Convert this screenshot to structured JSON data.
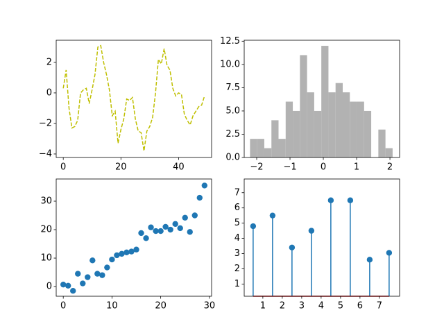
{
  "chart_data": [
    {
      "type": "line",
      "color": "#bfbf00",
      "linestyle": "dashed",
      "x": [
        0,
        1,
        2,
        3,
        4,
        5,
        6,
        7,
        8,
        9,
        10,
        11,
        12,
        13,
        14,
        15,
        16,
        17,
        18,
        19,
        20,
        21,
        22,
        23,
        24,
        25,
        26,
        27,
        28,
        29,
        30,
        31,
        32,
        33,
        34,
        35,
        36,
        37,
        38,
        39,
        40,
        41,
        42,
        43,
        44,
        45,
        46,
        47,
        48,
        49
      ],
      "values": [
        0.3,
        1.5,
        -1.0,
        -2.3,
        -2.2,
        -1.8,
        0.0,
        0.2,
        0.3,
        -0.7,
        0.2,
        1.2,
        3.0,
        3.1,
        2.0,
        1.2,
        0.2,
        -1.5,
        -1.2,
        -3.3,
        -2.4,
        -1.7,
        -0.4,
        -0.5,
        -0.3,
        -1.7,
        -2.5,
        -2.6,
        -3.8,
        -2.5,
        -2.2,
        -1.6,
        0.0,
        2.2,
        1.9,
        2.9,
        1.8,
        1.5,
        0.3,
        -0.2,
        0.0,
        -0.1,
        -1.4,
        -1.8,
        -2.1,
        -1.5,
        -1.2,
        -0.9,
        -0.8,
        -0.2
      ],
      "xlim": [
        -2.45,
        51.45
      ],
      "xticks": [
        0,
        20,
        40
      ],
      "ylim": [
        -4.23,
        3.45
      ],
      "yticks": [
        {
          "value": -4,
          "label": "−4"
        },
        {
          "value": -2,
          "label": "−2"
        },
        0,
        2
      ]
    },
    {
      "type": "histogram",
      "color": "#b2b2b2",
      "bins": [
        -2.2,
        -1.986,
        -1.772,
        -1.558,
        -1.344,
        -1.13,
        -0.916,
        -0.702,
        -0.488,
        -0.274,
        -0.06,
        0.154,
        0.368,
        0.582,
        0.796,
        1.01,
        1.224,
        1.438,
        1.652,
        1.866,
        2.08
      ],
      "values": [
        2,
        2,
        1,
        4,
        2,
        6,
        5,
        11,
        7,
        5,
        12,
        7,
        8,
        7,
        6,
        6,
        5,
        0,
        3,
        1
      ],
      "xlim": [
        -2.375,
        2.29
      ],
      "xticks": [
        {
          "value": -2,
          "label": "−2"
        },
        {
          "value": -1,
          "label": "−1"
        },
        0,
        1,
        2
      ],
      "ylim": [
        0,
        12.6
      ],
      "yticks": [
        {
          "value": 0,
          "label": "0.0"
        },
        2.5,
        {
          "value": 5,
          "label": "5.0"
        },
        7.5,
        {
          "value": 10,
          "label": "10.0"
        },
        12.5
      ]
    },
    {
      "type": "scatter",
      "color": "#1f77b4",
      "x": [
        0,
        1,
        2,
        3,
        4,
        5,
        6,
        7,
        8,
        9,
        10,
        11,
        12,
        13,
        14,
        15,
        16,
        17,
        18,
        19,
        20,
        21,
        22,
        23,
        24,
        25,
        26,
        27,
        28,
        29
      ],
      "values": [
        0.7,
        0.3,
        -1.5,
        4.5,
        1.1,
        3.3,
        9.2,
        4.5,
        4.0,
        6.7,
        9.5,
        11,
        11.5,
        12,
        12.3,
        13,
        18.8,
        17,
        20.8,
        19.5,
        19.5,
        21,
        20,
        22,
        20.5,
        24.2,
        19.2,
        25,
        31.2,
        35.5
      ],
      "xlim": [
        -1.45,
        30.45
      ],
      "xticks": [
        0,
        10,
        20,
        30
      ],
      "ylim": [
        -3.4,
        37.8
      ],
      "yticks": [
        0,
        10,
        20,
        30
      ]
    },
    {
      "type": "stem",
      "color": "#1f77b4",
      "baseline_color": "#d62728",
      "x": [
        0.5,
        1.5,
        2.5,
        3.5,
        4.5,
        5.5,
        6.5,
        7.5
      ],
      "values": [
        4.8,
        5.5,
        3.4,
        4.5,
        6.5,
        6.5,
        2.6,
        3.05
      ],
      "xlim": [
        0.04,
        8.04
      ],
      "xticks": [
        1,
        2,
        3,
        4,
        5,
        6,
        7
      ],
      "ylim": [
        0.2,
        7.9
      ],
      "yticks": [
        1,
        2,
        3,
        4,
        5,
        6,
        7
      ]
    }
  ]
}
